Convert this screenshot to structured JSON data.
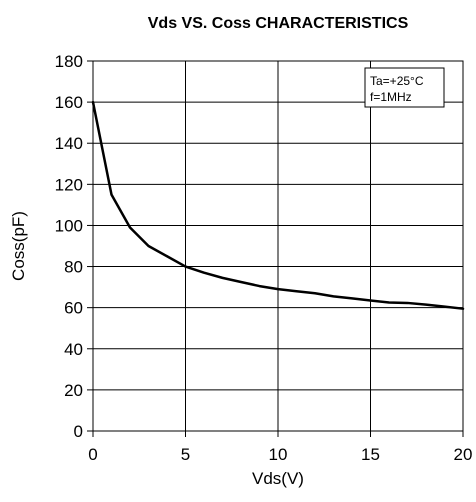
{
  "chart_data": {
    "type": "line",
    "title": "Vds  VS. Coss CHARACTERISTICS",
    "xlabel": "Vds(V)",
    "ylabel": "Coss(pF)",
    "xlim": [
      0,
      20
    ],
    "ylim": [
      0,
      180
    ],
    "x_ticks": [
      0,
      5,
      10,
      15,
      20
    ],
    "y_ticks": [
      0,
      20,
      40,
      60,
      80,
      100,
      120,
      140,
      160,
      180
    ],
    "grid": true,
    "legend": "none",
    "annotations": [
      "Ta=+25°C",
      "f=1MHz"
    ],
    "series": [
      {
        "x": [
          0,
          1,
          2,
          3,
          4,
          5,
          6,
          7,
          8,
          9,
          10,
          11,
          12,
          13,
          14,
          15,
          16,
          17,
          18,
          19,
          20
        ],
        "values": [
          160,
          115,
          99,
          90,
          85,
          80,
          77,
          74.5,
          72.5,
          70.5,
          69,
          68,
          67,
          65.5,
          64.5,
          63.5,
          62.5,
          62.3,
          61.5,
          60.5,
          59.5
        ],
        "color": "#000000"
      }
    ]
  }
}
